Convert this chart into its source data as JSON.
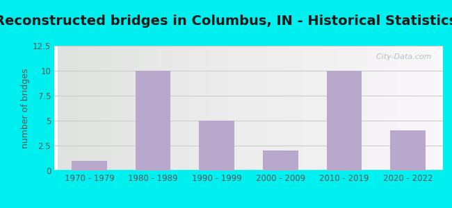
{
  "title": "Reconstructed bridges in Columbus, IN - Historical Statistics",
  "categories": [
    "1970 - 1979",
    "1980 - 1989",
    "1990 - 1999",
    "2000 - 2009",
    "2010 - 2019",
    "2020 - 2022"
  ],
  "values": [
    1,
    10,
    5,
    2,
    10,
    4
  ],
  "bar_color": "#b8a8cc",
  "ylabel": "number of bridges",
  "ylim": [
    0,
    12.5
  ],
  "yticks": [
    0,
    2.5,
    5,
    7.5,
    10,
    12.5
  ],
  "background_outer": "#00f0f0",
  "grid_color": "#c8c8c8",
  "watermark": "  City-Data.com",
  "title_fontsize": 14,
  "ylabel_fontsize": 9,
  "tick_fontsize": 8.5
}
